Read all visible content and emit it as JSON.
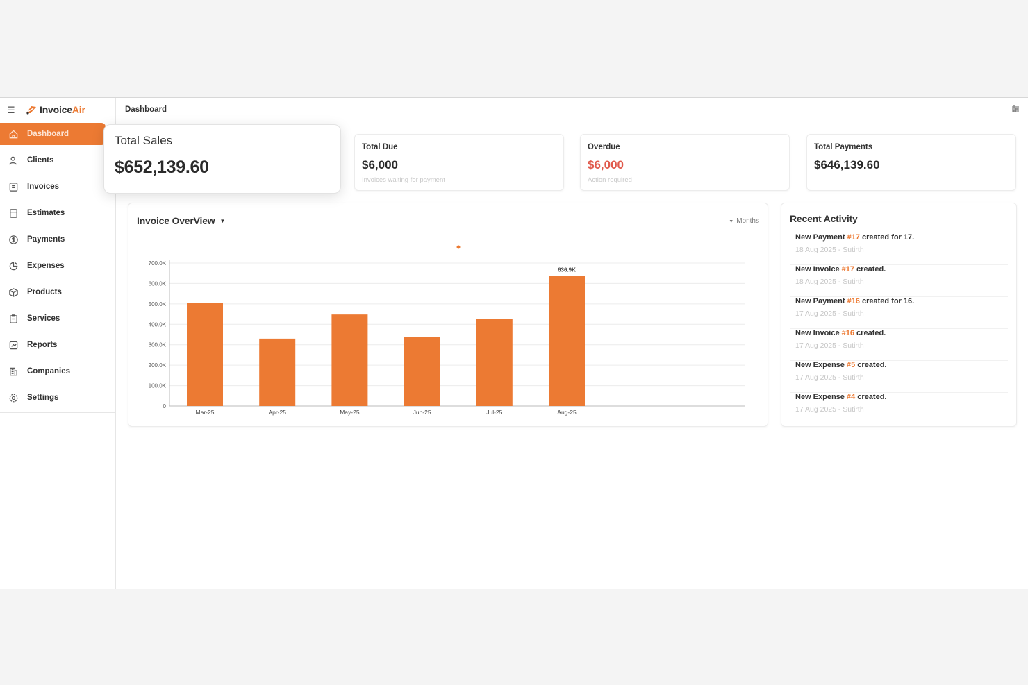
{
  "app": {
    "brand_part1": "Invoice",
    "brand_part2": "Air",
    "brand_color": "#ec7a33"
  },
  "sidebar": {
    "items": [
      {
        "label": "Dashboard",
        "icon": "home-icon",
        "active": true
      },
      {
        "label": "Clients",
        "icon": "users-icon"
      },
      {
        "label": "Invoices",
        "icon": "invoice-icon"
      },
      {
        "label": "Estimates",
        "icon": "estimate-icon"
      },
      {
        "label": "Payments",
        "icon": "dollar-icon"
      },
      {
        "label": "Expenses",
        "icon": "wallet-icon"
      },
      {
        "label": "Products",
        "icon": "box-icon"
      },
      {
        "label": "Services",
        "icon": "clipboard-icon"
      },
      {
        "label": "Reports",
        "icon": "report-icon"
      },
      {
        "label": "Companies",
        "icon": "building-icon"
      },
      {
        "label": "Settings",
        "icon": "gear-icon"
      }
    ]
  },
  "topbar": {
    "breadcrumb": "Dashboard",
    "right_icon": "settings-sliders-icon"
  },
  "stats": {
    "total_sales": {
      "label": "Total Sales",
      "value": "$652,139.60"
    },
    "total_due": {
      "label": "Total Due",
      "value": "$6,000",
      "sub": "Invoices waiting for payment"
    },
    "overdue": {
      "label": "Overdue",
      "value": "$6,000",
      "sub": "Action required",
      "color": "#e05a4c"
    },
    "total_payments": {
      "label": "Total Payments",
      "value": "$646,139.60"
    }
  },
  "chart": {
    "title": "Invoice OverView",
    "filter_label": "Months"
  },
  "chart_data": {
    "type": "bar",
    "categories": [
      "Mar-25",
      "Apr-25",
      "May-25",
      "Jun-25",
      "Jul-25",
      "Aug-25"
    ],
    "values": [
      505000,
      330000,
      448000,
      337000,
      428000,
      636900
    ],
    "data_labels": [
      "",
      "",
      "",
      "",
      "",
      "636.9K"
    ],
    "y_ticks": [
      "0",
      "100.0K",
      "200.0K",
      "300.0K",
      "400.0K",
      "500.0K",
      "600.0K",
      "700.0K"
    ],
    "ylim": [
      0,
      700000
    ],
    "grid": true,
    "bar_color": "#ec7a33",
    "title": "Invoice OverView",
    "xlabel": "",
    "ylabel": ""
  },
  "activity": {
    "title": "Recent Activity",
    "items": [
      {
        "pre": "New Payment ",
        "ref": "#17",
        "post": " created for 17.",
        "meta": "18 Aug 2025 - Sutirth"
      },
      {
        "pre": "New Invoice ",
        "ref": "#17",
        "post": " created.",
        "meta": "18 Aug 2025 - Sutirth"
      },
      {
        "pre": "New Payment ",
        "ref": "#16",
        "post": " created for 16.",
        "meta": "17 Aug 2025 - Sutirth"
      },
      {
        "pre": "New Invoice ",
        "ref": "#16",
        "post": " created.",
        "meta": "17 Aug 2025 - Sutirth"
      },
      {
        "pre": "New Expense ",
        "ref": "#5",
        "post": " created.",
        "meta": "17 Aug 2025 - Sutirth"
      },
      {
        "pre": "New Expense ",
        "ref": "#4",
        "post": " created.",
        "meta": "17 Aug 2025 - Sutirth"
      }
    ]
  }
}
